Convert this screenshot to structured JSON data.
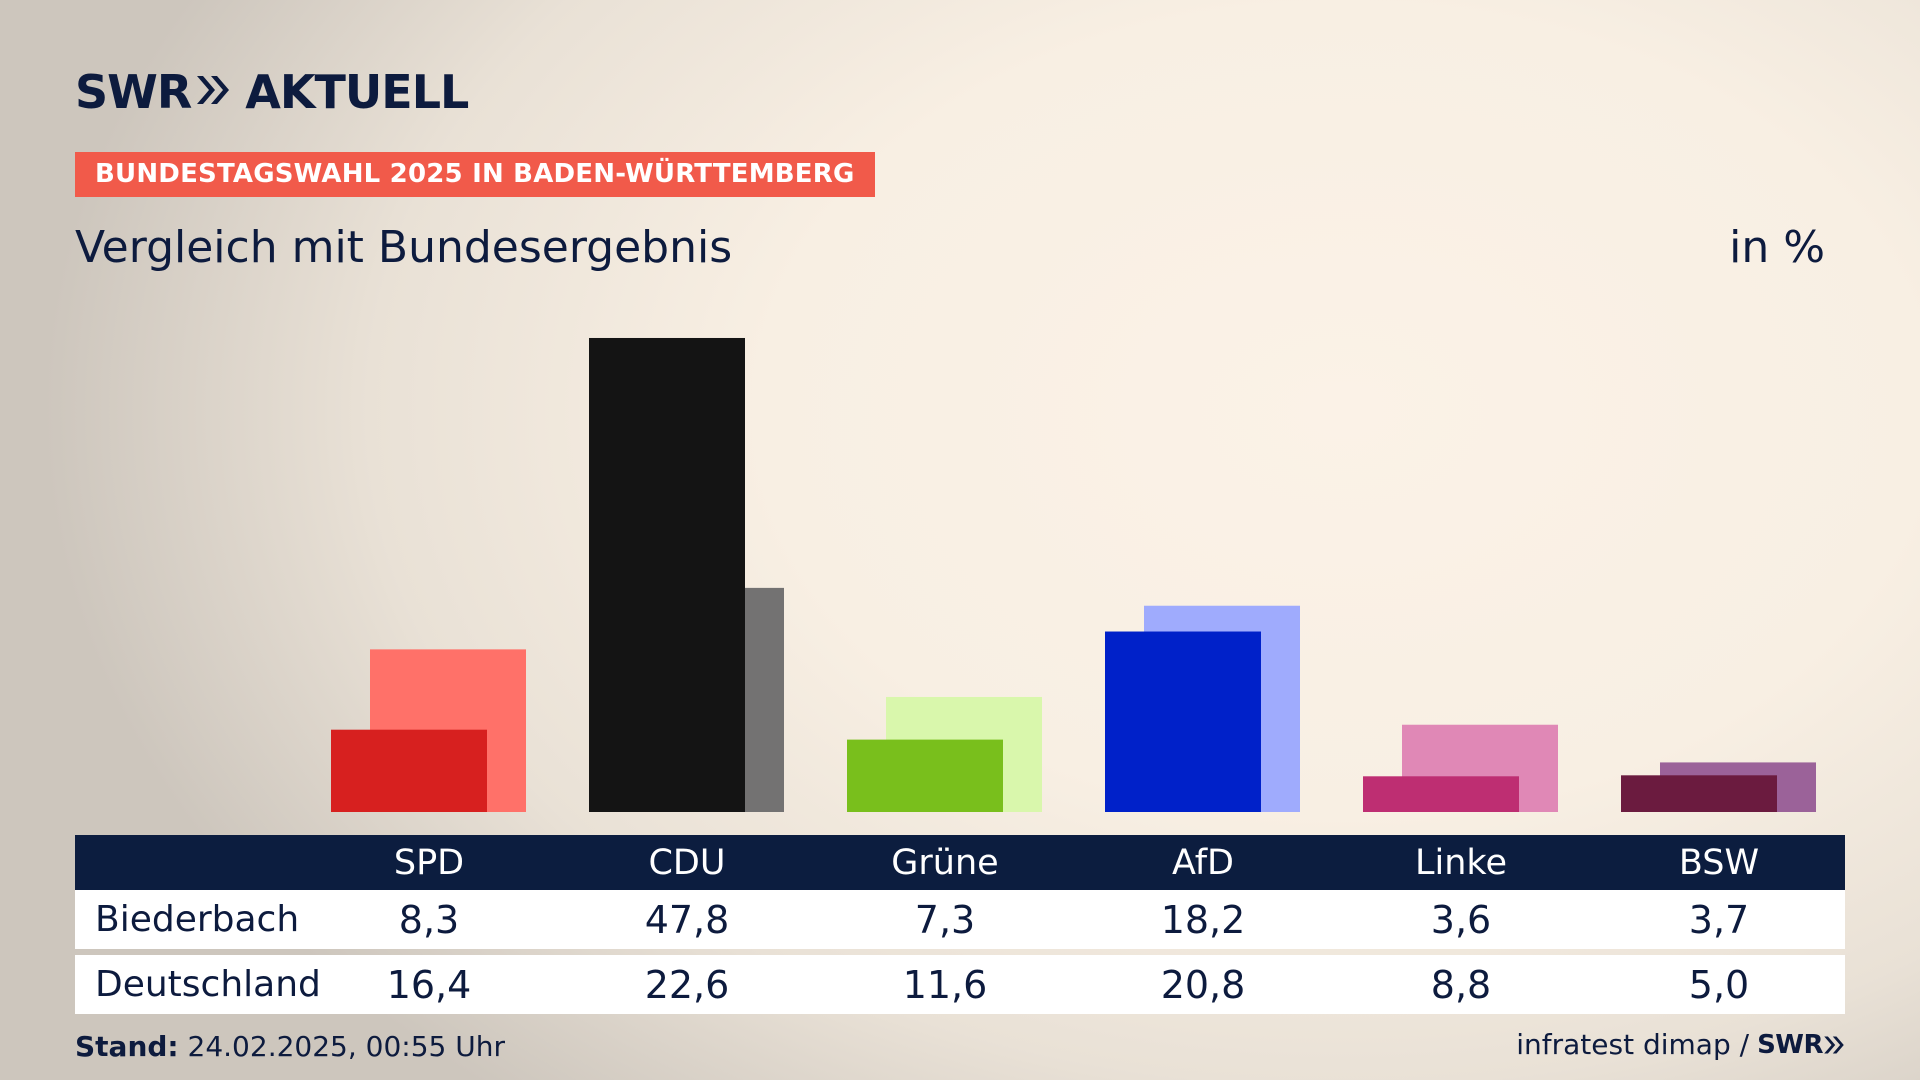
{
  "brand": {
    "name_left": "SWR",
    "name_right": "AKTUELL",
    "small": "SWR"
  },
  "tag": "BUNDESTAGSWAHL 2025 IN BADEN-WÜRTTEMBERG",
  "unit": "in %",
  "footer": {
    "stand_label": "Stand:",
    "stand_value": "24.02.2025, 00:55 Uhr",
    "source": "infratest dimap /"
  },
  "chart_data": {
    "type": "bar",
    "subtitle": "Vergleich mit Bundesergebnis",
    "categories": [
      "SPD",
      "CDU",
      "Grüne",
      "AfD",
      "Linke",
      "BSW"
    ],
    "series": [
      {
        "name": "Biederbach",
        "values": [
          8.3,
          47.8,
          7.3,
          18.2,
          3.6,
          3.7
        ],
        "labels": [
          "8,3",
          "47,8",
          "7,3",
          "18,2",
          "3,6",
          "3,7"
        ],
        "colors": [
          "#d7201f",
          "#141414",
          "#79bf1c",
          "#0021c9",
          "#be2e72",
          "#6b1b3f"
        ]
      },
      {
        "name": "Deutschland",
        "values": [
          16.4,
          22.6,
          11.6,
          20.8,
          8.8,
          5.0
        ],
        "labels": [
          "16,4",
          "22,6",
          "11,6",
          "20,8",
          "8,8",
          "5,0"
        ],
        "colors": [
          "#ff7169",
          "#737272",
          "#d9f7ac",
          "#9fabfd",
          "#e088b6",
          "#9b6299"
        ]
      }
    ],
    "ylim": [
      0,
      48
    ]
  }
}
